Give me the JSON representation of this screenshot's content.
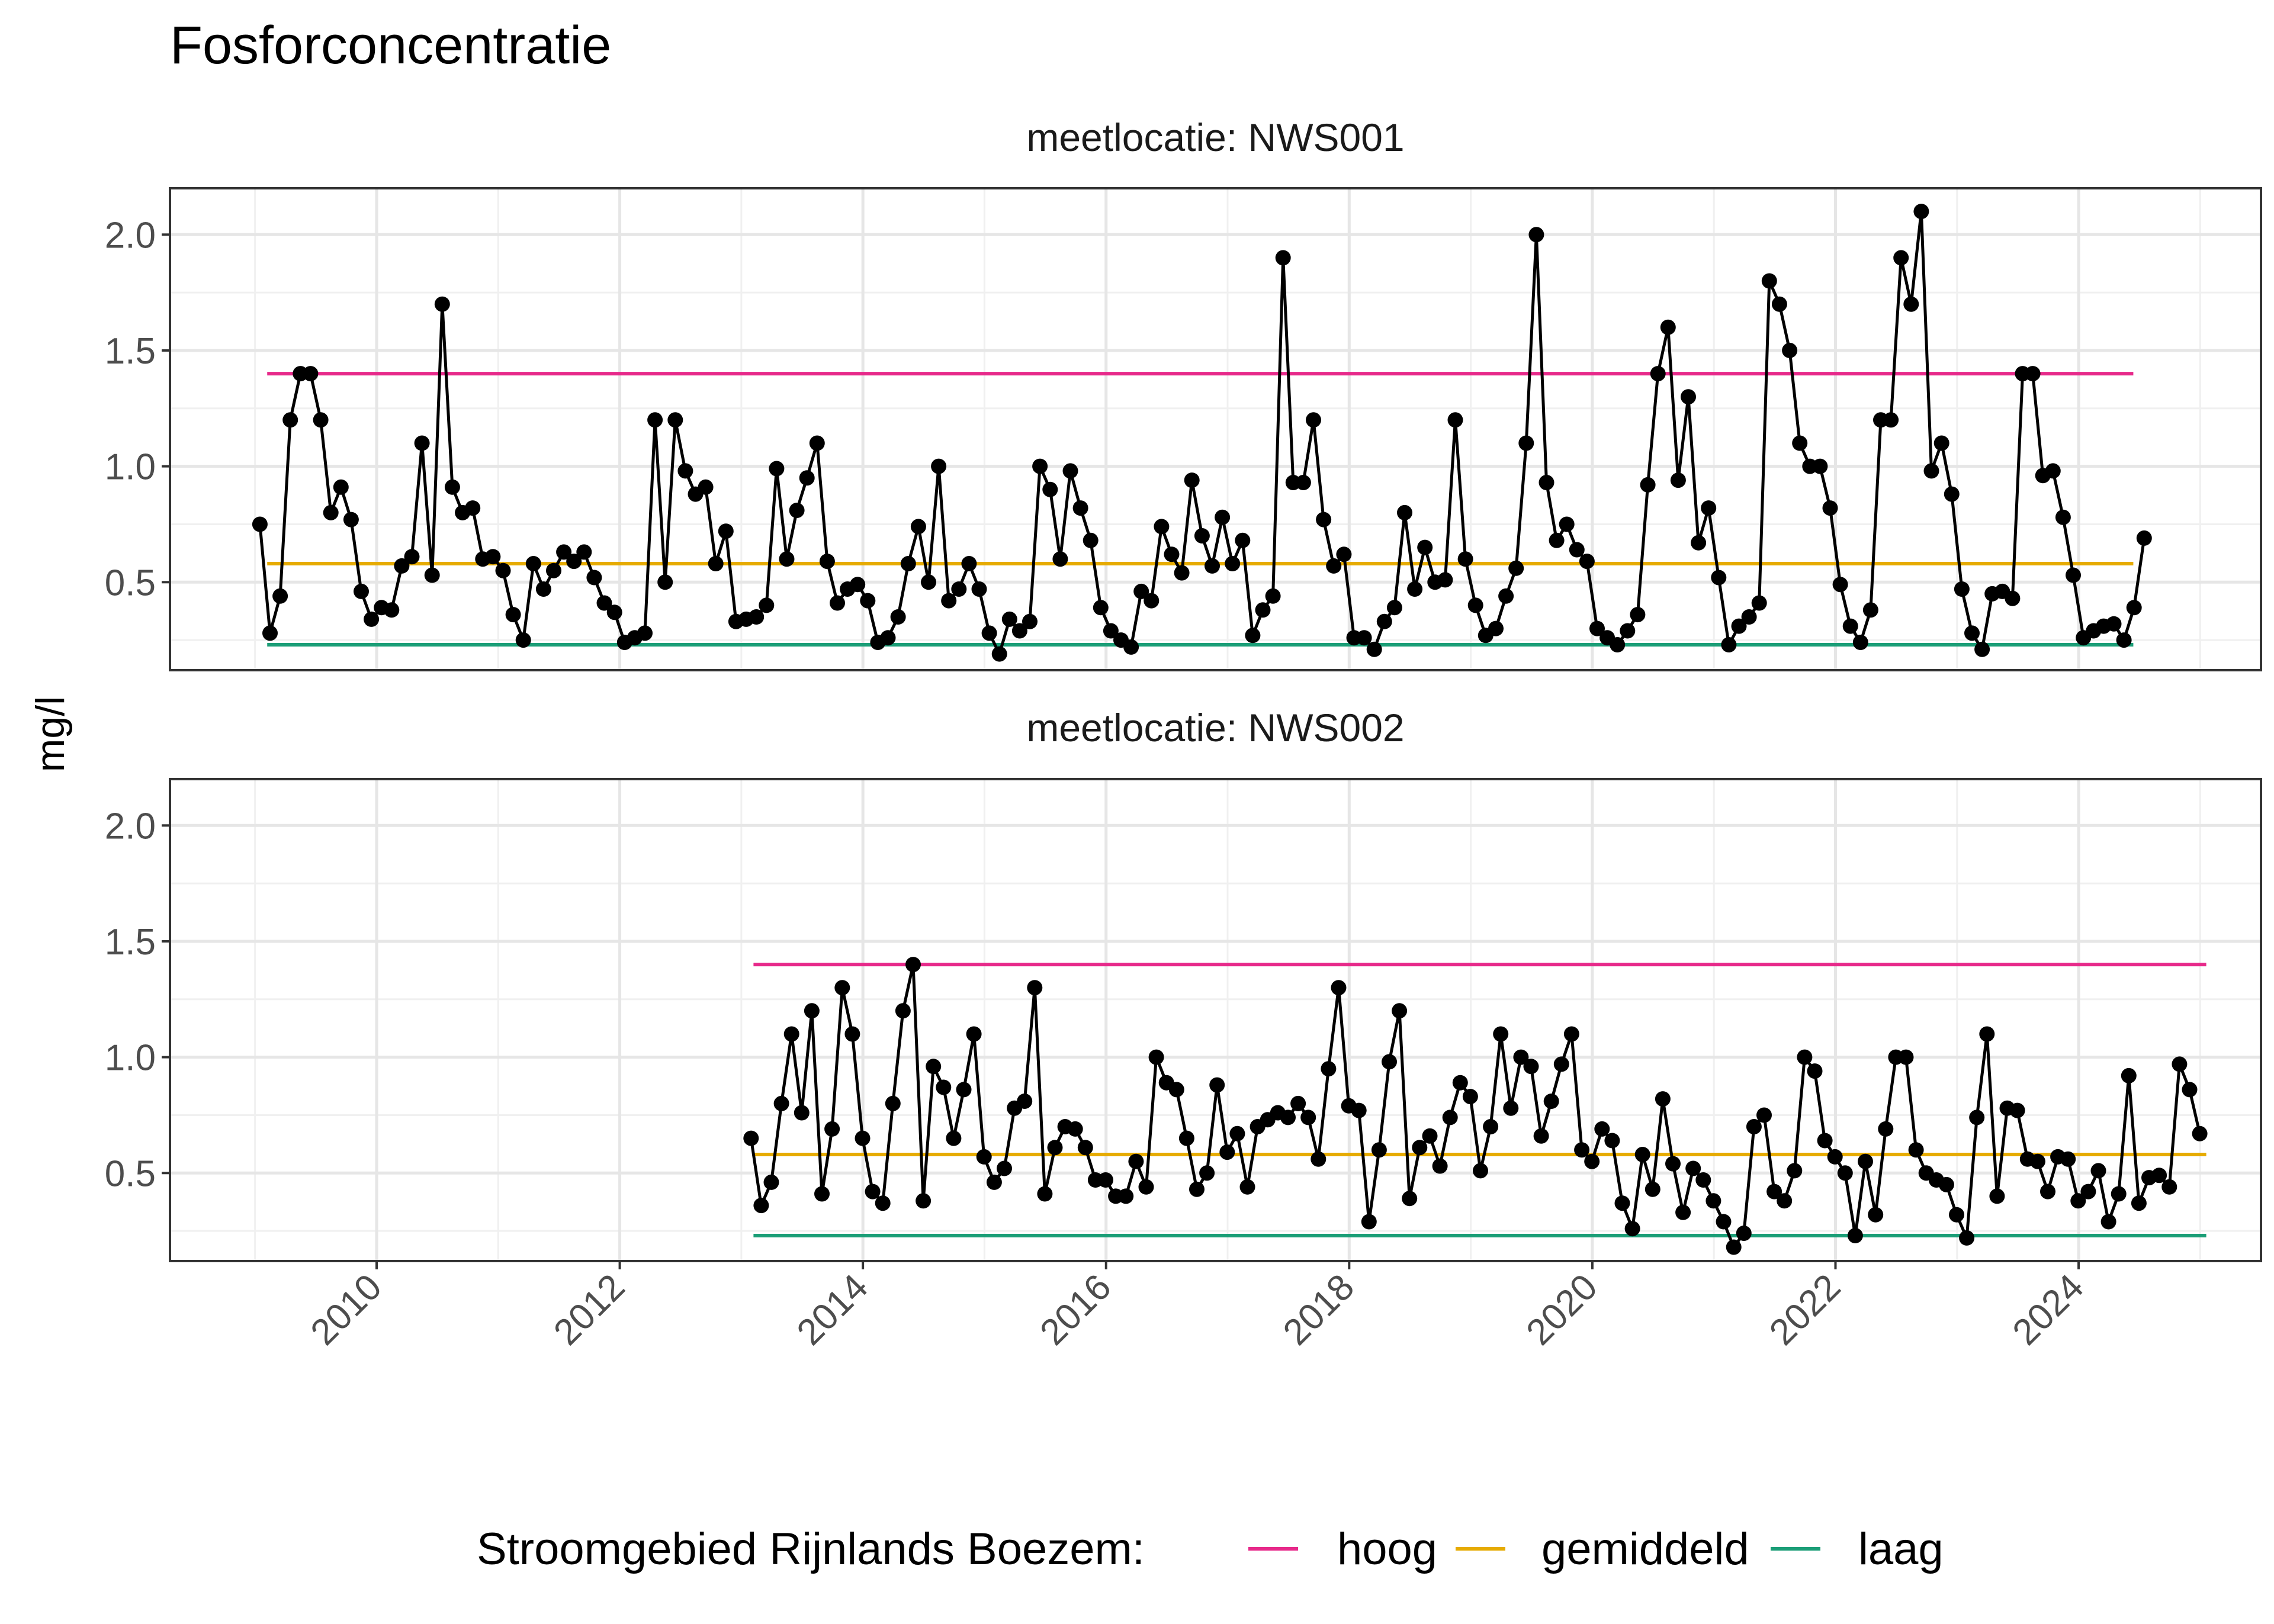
{
  "chart_data": {
    "type": "line",
    "title": "Fosforconcentratie",
    "ylabel": "mg/l",
    "xlabel": "",
    "ylim": [
      0.12,
      2.2
    ],
    "yticks": [
      "0.5",
      "1.0",
      "1.5",
      "2.0"
    ],
    "xlim": [
      2008.3,
      2025.5
    ],
    "xticks": [
      "2010",
      "2012",
      "2014",
      "2016",
      "2018",
      "2020",
      "2022",
      "2024"
    ],
    "grid": true,
    "legend": {
      "title": "Stroomgebied Rijnlands Boezem:",
      "position": "bottom",
      "entries": [
        {
          "label": "hoog",
          "color": "#E7298A"
        },
        {
          "label": "gemiddeld",
          "color": "#E6AB02"
        },
        {
          "label": "laag",
          "color": "#1B9E77"
        }
      ]
    },
    "panels": [
      {
        "label": "meetlocatie: NWS001",
        "reference_lines": [
          {
            "name": "hoog",
            "value": 1.4,
            "x_from": 2009.1,
            "x_to": 2024.45
          },
          {
            "name": "gemiddeld",
            "value": 0.58,
            "x_from": 2009.1,
            "x_to": 2024.45
          },
          {
            "name": "laag",
            "value": 0.23,
            "x_from": 2009.1,
            "x_to": 2024.45
          }
        ],
        "series": {
          "x_start": 2009.04,
          "x_step": 0.08333,
          "values": [
            0.75,
            0.28,
            0.44,
            1.2,
            1.4,
            1.4,
            1.2,
            0.8,
            0.91,
            0.77,
            0.46,
            0.34,
            0.39,
            0.38,
            0.57,
            0.61,
            1.1,
            0.53,
            1.7,
            0.91,
            0.8,
            0.82,
            0.6,
            0.61,
            0.55,
            0.36,
            0.25,
            0.58,
            0.47,
            0.55,
            0.63,
            0.59,
            0.63,
            0.52,
            0.41,
            0.37,
            0.24,
            0.26,
            0.28,
            1.2,
            0.5,
            1.2,
            0.98,
            0.88,
            0.91,
            0.58,
            0.72,
            0.33,
            0.34,
            0.35,
            0.4,
            0.99,
            0.6,
            0.81,
            0.95,
            1.1,
            0.59,
            0.41,
            0.47,
            0.49,
            0.42,
            0.24,
            0.26,
            0.35,
            0.58,
            0.74,
            0.5,
            1.0,
            0.42,
            0.47,
            0.58,
            0.47,
            0.28,
            0.19,
            0.34,
            0.29,
            0.33,
            1.0,
            0.9,
            0.6,
            0.98,
            0.82,
            0.68,
            0.39,
            0.29,
            0.25,
            0.22,
            0.46,
            0.42,
            0.74,
            0.62,
            0.54,
            0.94,
            0.7,
            0.57,
            0.78,
            0.58,
            0.68,
            0.27,
            0.38,
            0.44,
            1.9,
            0.93,
            0.93,
            1.2,
            0.77,
            0.57,
            0.62,
            0.26,
            0.26,
            0.21,
            0.33,
            0.39,
            0.8,
            0.47,
            0.65,
            0.5,
            0.51,
            1.2,
            0.6,
            0.4,
            0.27,
            0.3,
            0.44,
            0.56,
            1.1,
            2.0,
            0.93,
            0.68,
            0.75,
            0.64,
            0.59,
            0.3,
            0.26,
            0.23,
            0.29,
            0.36,
            0.92,
            1.4,
            1.6,
            0.94,
            1.3,
            0.67,
            0.82,
            0.52,
            0.23,
            0.31,
            0.35,
            0.41,
            1.8,
            1.7,
            1.5,
            1.1,
            1.0,
            1.0,
            0.82,
            0.49,
            0.31,
            0.24,
            0.38,
            1.2,
            1.2,
            1.9,
            1.7,
            2.1,
            0.98,
            1.1,
            0.88,
            0.47,
            0.28,
            0.21,
            0.45,
            0.46,
            0.43,
            1.4,
            1.4,
            0.96,
            0.98,
            0.78,
            0.53,
            0.26,
            0.29,
            0.31,
            0.32,
            0.25,
            0.39,
            0.69
          ]
        }
      },
      {
        "label": "meetlocatie: NWS002",
        "reference_lines": [
          {
            "name": "hoog",
            "value": 1.4,
            "x_from": 2013.1,
            "x_to": 2025.05
          },
          {
            "name": "gemiddeld",
            "value": 0.58,
            "x_from": 2013.1,
            "x_to": 2025.05
          },
          {
            "name": "laag",
            "value": 0.23,
            "x_from": 2013.1,
            "x_to": 2025.05
          }
        ],
        "series": {
          "x_start": 2013.08,
          "x_step": 0.08333,
          "values": [
            0.65,
            0.36,
            0.46,
            0.8,
            1.1,
            0.76,
            1.2,
            0.41,
            0.69,
            1.3,
            1.1,
            0.65,
            0.42,
            0.37,
            0.8,
            1.2,
            1.4,
            0.38,
            0.96,
            0.87,
            0.65,
            0.86,
            1.1,
            0.57,
            0.46,
            0.52,
            0.78,
            0.81,
            1.3,
            0.41,
            0.61,
            0.7,
            0.69,
            0.61,
            0.47,
            0.47,
            0.4,
            0.4,
            0.55,
            0.44,
            1.0,
            0.89,
            0.86,
            0.65,
            0.43,
            0.5,
            0.88,
            0.59,
            0.67,
            0.44,
            0.7,
            0.73,
            0.76,
            0.74,
            0.8,
            0.74,
            0.56,
            0.95,
            1.3,
            0.79,
            0.77,
            0.29,
            0.6,
            0.98,
            1.2,
            0.39,
            0.61,
            0.66,
            0.53,
            0.74,
            0.89,
            0.83,
            0.51,
            0.7,
            1.1,
            0.78,
            1.0,
            0.96,
            0.66,
            0.81,
            0.97,
            1.1,
            0.6,
            0.55,
            0.69,
            0.64,
            0.37,
            0.26,
            0.58,
            0.43,
            0.82,
            0.54,
            0.33,
            0.52,
            0.47,
            0.38,
            0.29,
            0.18,
            0.24,
            0.7,
            0.75,
            0.42,
            0.38,
            0.51,
            1.0,
            0.94,
            0.64,
            0.57,
            0.5,
            0.23,
            0.55,
            0.32,
            0.69,
            1.0,
            1.0,
            0.6,
            0.5,
            0.47,
            0.45,
            0.32,
            0.22,
            0.74,
            1.1,
            0.4,
            0.78,
            0.77,
            0.56,
            0.55,
            0.42,
            0.57,
            0.56,
            0.38,
            0.42,
            0.51,
            0.29,
            0.41,
            0.92,
            0.37,
            0.48,
            0.49,
            0.44,
            0.97,
            0.86,
            0.67
          ]
        }
      }
    ]
  }
}
